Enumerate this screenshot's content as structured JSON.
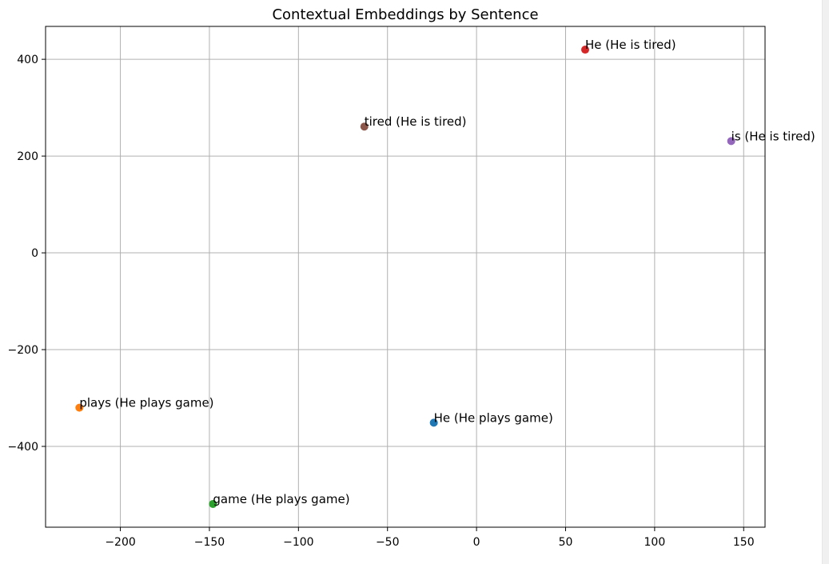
{
  "chart_data": {
    "type": "scatter",
    "title": "Contextual Embeddings by Sentence",
    "xlabel": "",
    "ylabel": "",
    "xlim": [
      -242,
      162
    ],
    "ylim": [
      -567,
      468
    ],
    "xticks": [
      -200,
      -150,
      -100,
      -50,
      0,
      50,
      100,
      150
    ],
    "yticks": [
      400,
      200,
      0,
      -200,
      -400
    ],
    "xtick_labels": [
      "−200",
      "−150",
      "−100",
      "−50",
      "0",
      "50",
      "100",
      "150"
    ],
    "ytick_labels": [
      "400",
      "200",
      "0",
      "−200",
      "−400"
    ],
    "grid": true,
    "points": [
      {
        "label": "He (He plays game)",
        "x": -24,
        "y": -351,
        "color": "#1f77b4"
      },
      {
        "label": "plays (He plays game)",
        "x": -223,
        "y": -320,
        "color": "#ff7f0e"
      },
      {
        "label": "game (He plays game)",
        "x": -148,
        "y": -519,
        "color": "#2ca02c"
      },
      {
        "label": "He (He is tired)",
        "x": 61,
        "y": 420,
        "color": "#d62728"
      },
      {
        "label": "is (He is tired)",
        "x": 143,
        "y": 231,
        "color": "#9467bd"
      },
      {
        "label": "tired (He is tired)",
        "x": -63,
        "y": 261,
        "color": "#8c564b"
      }
    ]
  }
}
